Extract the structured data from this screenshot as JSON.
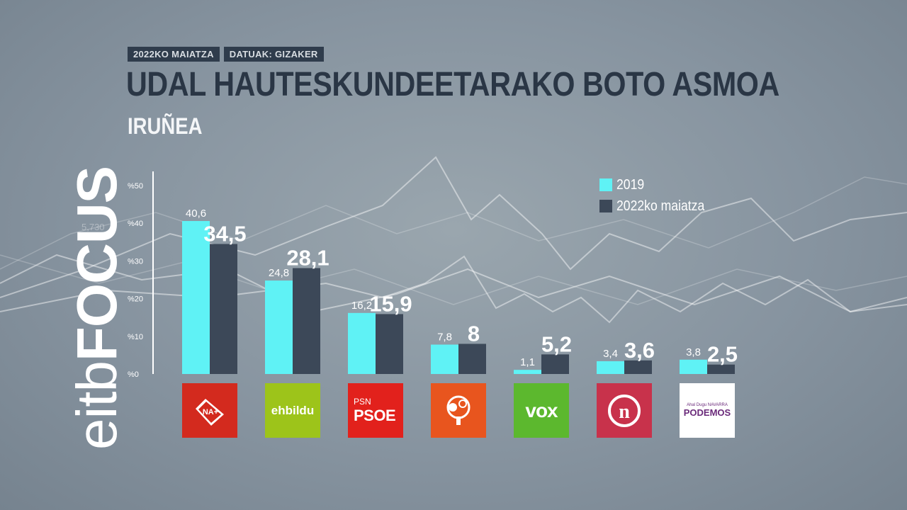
{
  "header": {
    "date_tag": "2022KO MAIATZA",
    "source_tag": "DATUAK: GIZAKER",
    "title": "UDAL HAUTESKUNDEETARAKO BOTO ASMOA",
    "subtitle": "IRUÑEA"
  },
  "brand": {
    "prefix": "eitb",
    "suffix": "FOCUS"
  },
  "background": {
    "watermark_number": "5,730"
  },
  "colors": {
    "series_2019": "#5ff2f5",
    "series_2022": "#3c4858",
    "title": "#2a3645"
  },
  "chart_data": {
    "type": "bar",
    "categories": [
      "NA+",
      "EH Bildu",
      "PSN-PSOE",
      "Geroa Bai",
      "VOX",
      "Navarra Suma / n",
      "Podemos"
    ],
    "series": [
      {
        "name": "2019",
        "values": [
          40.6,
          24.8,
          16.2,
          7.8,
          1.1,
          3.4,
          3.8
        ],
        "labels": [
          "40,6",
          "24,8",
          "16,2",
          "7,8",
          "1,1",
          "3,4",
          "3,8"
        ]
      },
      {
        "name": "2022ko maiatza",
        "values": [
          34.5,
          28.1,
          15.9,
          8,
          5.2,
          3.6,
          2.5
        ],
        "labels": [
          "34,5",
          "28,1",
          "15,9",
          "8",
          "5,2",
          "3,6",
          "2,5"
        ]
      }
    ],
    "y_ticks": [
      "%0",
      "%10",
      "%20",
      "%30",
      "%40",
      "%50"
    ],
    "ylim": [
      0,
      50
    ],
    "legend_position": "top-right"
  },
  "logos": [
    {
      "name": "na-plus",
      "text": "NA+",
      "color": "#d32a1e"
    },
    {
      "name": "ehbildu",
      "text": "ehbildu",
      "color": "#9dc41a"
    },
    {
      "name": "psn-psoe",
      "text_top": "PSN",
      "text": "PSOE",
      "color": "#e2211c"
    },
    {
      "name": "geroa-bai",
      "text": "",
      "color": "#e8551e"
    },
    {
      "name": "vox",
      "text": "vox",
      "color": "#5cb82e"
    },
    {
      "name": "n-party",
      "text": "n",
      "color": "#c8324b"
    },
    {
      "name": "podemos",
      "text_top": "Ahal Dugu NAVARRA",
      "text": "PODEMOS",
      "color": "#ffffff"
    }
  ]
}
